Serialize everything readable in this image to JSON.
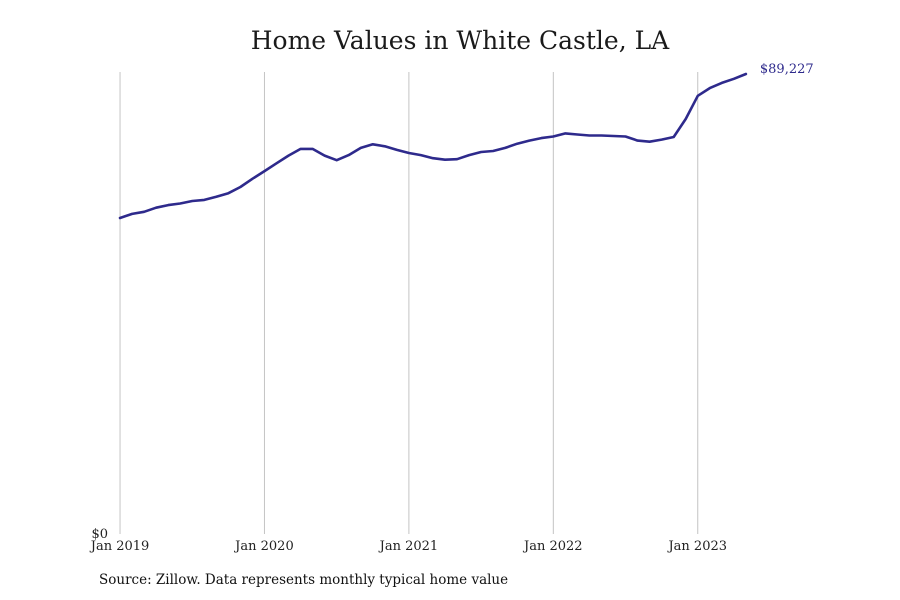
{
  "chart_data": {
    "type": "line",
    "title": "Home Values in White Castle, LA",
    "xlabel": "",
    "ylabel": "",
    "x_tick_labels": [
      "Jan 2019",
      "Jan 2020",
      "Jan 2021",
      "Jan 2022",
      "Jan 2023"
    ],
    "y_tick_labels": [
      "$0"
    ],
    "ylim": [
      0,
      89227
    ],
    "x_range": [
      "2018-12",
      "2023-08"
    ],
    "grid": "vertical at each January",
    "legend": "none",
    "end_label": "$89,227",
    "line_color": "#2e2a8c",
    "series": [
      {
        "x": [
          "2019-01",
          "2019-02",
          "2019-03",
          "2019-04",
          "2019-05",
          "2019-06",
          "2019-07",
          "2019-08",
          "2019-09",
          "2019-10",
          "2019-11",
          "2019-12",
          "2020-01",
          "2020-02",
          "2020-03",
          "2020-04",
          "2020-05",
          "2020-06",
          "2020-07",
          "2020-08",
          "2020-09",
          "2020-10",
          "2020-11",
          "2020-12",
          "2021-01",
          "2021-02",
          "2021-03",
          "2021-04",
          "2021-05",
          "2021-06",
          "2021-07",
          "2021-08",
          "2021-09",
          "2021-10",
          "2021-11",
          "2021-12",
          "2022-01",
          "2022-02",
          "2022-03",
          "2022-04",
          "2022-05",
          "2022-06",
          "2022-07",
          "2022-08",
          "2022-09",
          "2022-10",
          "2022-11",
          "2022-12",
          "2023-01",
          "2023-02",
          "2023-03",
          "2023-04",
          "2023-05"
        ],
        "y": [
          61300,
          62100,
          62500,
          63300,
          63800,
          64100,
          64600,
          64800,
          65400,
          66100,
          67300,
          68900,
          70400,
          71900,
          73400,
          74700,
          74700,
          73400,
          72500,
          73500,
          74900,
          75600,
          75200,
          74500,
          73900,
          73500,
          72900,
          72600,
          72700,
          73500,
          74100,
          74300,
          74900,
          75700,
          76300,
          76800,
          77100,
          77700,
          77500,
          77300,
          77300,
          77200,
          77100,
          76300,
          76100,
          76500,
          77000,
          80500,
          85000,
          86500,
          87500,
          88300,
          89227
        ]
      }
    ]
  },
  "source_note": "Source: Zillow. Data represents monthly typical home value"
}
